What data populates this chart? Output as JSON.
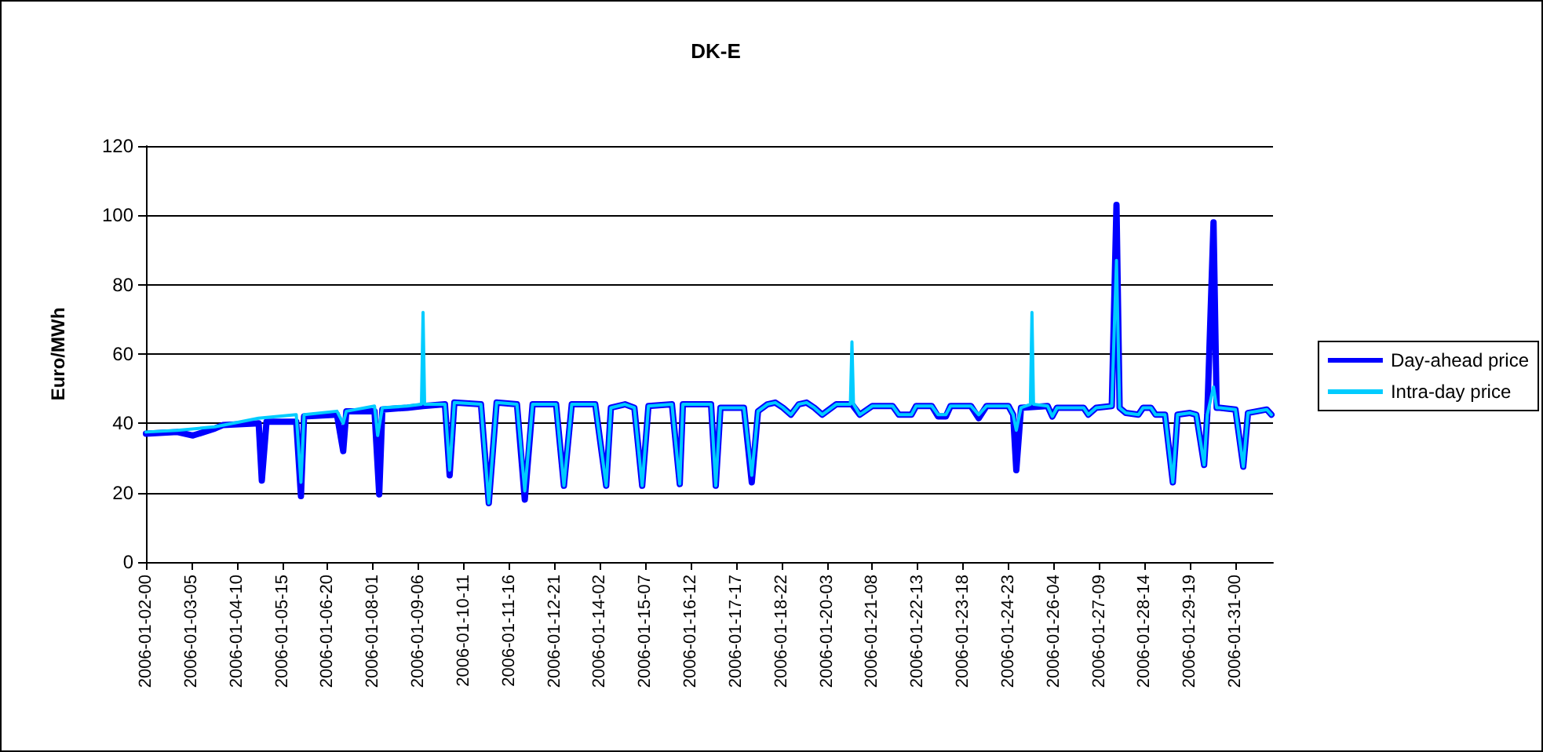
{
  "chart_data": {
    "type": "line",
    "title": "DK-E",
    "ylabel": "Euro/MWh",
    "xlim": [
      "2006-01-02T00:00",
      "2006-02-01T00:00"
    ],
    "xticks": [
      {
        "value": "2006-01-02T00:00",
        "label": "2006-01-02-00"
      },
      {
        "value": "2006-01-03T05:00",
        "label": "2006-01-03-05"
      },
      {
        "value": "2006-01-04T10:00",
        "label": "2006-01-04-10"
      },
      {
        "value": "2006-01-05T15:00",
        "label": "2006-01-05-15"
      },
      {
        "value": "2006-01-06T20:00",
        "label": "2006-01-06-20"
      },
      {
        "value": "2006-01-08T01:00",
        "label": "2006-01-08-01"
      },
      {
        "value": "2006-01-09T06:00",
        "label": "2006-01-09-06"
      },
      {
        "value": "2006-01-10T11:00",
        "label": "2006-01-10-11"
      },
      {
        "value": "2006-01-11T16:00",
        "label": "2006-01-11-16"
      },
      {
        "value": "2006-01-12T21:00",
        "label": "2006-01-12-21"
      },
      {
        "value": "2006-01-14T02:00",
        "label": "2006-01-14-02"
      },
      {
        "value": "2006-01-15T07:00",
        "label": "2006-01-15-07"
      },
      {
        "value": "2006-01-16T12:00",
        "label": "2006-01-16-12"
      },
      {
        "value": "2006-01-17T17:00",
        "label": "2006-01-17-17"
      },
      {
        "value": "2006-01-18T22:00",
        "label": "2006-01-18-22"
      },
      {
        "value": "2006-01-20T03:00",
        "label": "2006-01-20-03"
      },
      {
        "value": "2006-01-21T08:00",
        "label": "2006-01-21-08"
      },
      {
        "value": "2006-01-22T13:00",
        "label": "2006-01-22-13"
      },
      {
        "value": "2006-01-23T18:00",
        "label": "2006-01-23-18"
      },
      {
        "value": "2006-01-24T23:00",
        "label": "2006-01-24-23"
      },
      {
        "value": "2006-01-26T04:00",
        "label": "2006-01-26-04"
      },
      {
        "value": "2006-01-27T09:00",
        "label": "2006-01-27-09"
      },
      {
        "value": "2006-01-28T14:00",
        "label": "2006-01-28-14"
      },
      {
        "value": "2006-01-29T19:00",
        "label": "2006-01-29-19"
      },
      {
        "value": "2006-01-31T00:00",
        "label": "2006-01-31-00"
      }
    ],
    "ylim": [
      0,
      120
    ],
    "yticks": [
      0,
      20,
      40,
      60,
      80,
      100,
      120
    ],
    "grid": "y",
    "legend": "right",
    "marker": "none",
    "line_style": "solid",
    "series": [
      {
        "name": "Day-ahead price",
        "color": "#0000ff",
        "x": [
          "2006-01-02T00:00",
          "2006-01-02T20:00",
          "2006-01-03T06:00",
          "2006-01-03T20:00",
          "2006-01-04T01:00",
          "2006-01-05T00:00",
          "2006-01-05T02:00",
          "2006-01-05T05:00",
          "2006-01-06T00:00",
          "2006-01-06T03:00",
          "2006-01-06T05:00",
          "2006-01-07T02:00",
          "2006-01-07T06:00",
          "2006-01-07T08:00",
          "2006-01-08T02:00",
          "2006-01-08T05:00",
          "2006-01-08T07:00",
          "2006-01-08T23:00",
          "2006-01-09T09:00",
          "2006-01-09T23:00",
          "2006-01-10T02:00",
          "2006-01-10T05:00",
          "2006-01-10T22:00",
          "2006-01-11T03:00",
          "2006-01-11T08:00",
          "2006-01-11T21:00",
          "2006-01-12T02:00",
          "2006-01-12T07:00",
          "2006-01-12T22:00",
          "2006-01-13T03:00",
          "2006-01-13T08:00",
          "2006-01-13T23:00",
          "2006-01-14T06:00",
          "2006-01-14T09:00",
          "2006-01-14T18:00",
          "2006-01-15T00:00",
          "2006-01-15T05:00",
          "2006-01-15T09:00",
          "2006-01-16T00:00",
          "2006-01-16T05:00",
          "2006-01-16T07:00",
          "2006-01-17T01:00",
          "2006-01-17T04:00",
          "2006-01-17T07:00",
          "2006-01-17T22:00",
          "2006-01-18T03:00",
          "2006-01-18T07:00",
          "2006-01-18T13:00",
          "2006-01-18T18:00",
          "2006-01-18T23:00",
          "2006-01-19T04:00",
          "2006-01-19T09:00",
          "2006-01-19T14:00",
          "2006-01-19T19:00",
          "2006-01-20T00:00",
          "2006-01-20T09:00",
          "2006-01-20T19:00",
          "2006-01-21T00:00",
          "2006-01-21T08:00",
          "2006-01-21T21:00",
          "2006-01-22T01:00",
          "2006-01-22T09:00",
          "2006-01-22T12:00",
          "2006-01-22T22:00",
          "2006-01-23T02:00",
          "2006-01-23T07:00",
          "2006-01-23T10:00",
          "2006-01-23T23:00",
          "2006-01-24T04:00",
          "2006-01-24T09:00",
          "2006-01-24T23:00",
          "2006-01-25T02:00",
          "2006-01-25T04:00",
          "2006-01-25T07:00",
          "2006-01-26T00:00",
          "2006-01-26T03:00",
          "2006-01-26T06:00",
          "2006-01-26T23:00",
          "2006-01-27T02:00",
          "2006-01-27T07:00",
          "2006-01-27T17:00",
          "2006-01-27T20:00",
          "2006-01-27T22:00",
          "2006-01-28T02:00",
          "2006-01-28T10:00",
          "2006-01-28T13:00",
          "2006-01-28T18:00",
          "2006-01-28T21:00",
          "2006-01-29T03:00",
          "2006-01-29T08:00",
          "2006-01-29T11:00",
          "2006-01-29T19:00",
          "2006-01-29T23:00",
          "2006-01-30T04:00",
          "2006-01-30T06:00",
          "2006-01-30T10:00",
          "2006-01-30T12:00",
          "2006-01-30T14:00",
          "2006-01-31T00:00",
          "2006-01-31T05:00",
          "2006-01-31T08:00",
          "2006-01-31T20:00",
          "2006-01-31T23:00"
        ],
        "values": [
          37,
          37.5,
          36.5,
          38.5,
          39.5,
          40,
          23.5,
          40.5,
          40.5,
          19,
          42,
          42.5,
          32,
          43.5,
          43.5,
          19.5,
          44,
          44.5,
          45,
          45.5,
          25,
          46,
          45.5,
          17,
          46,
          45.5,
          18,
          45.5,
          45.5,
          22,
          45.5,
          45.5,
          22,
          44.5,
          45.5,
          44.5,
          22,
          45,
          45.5,
          22.5,
          45.5,
          45.5,
          22,
          44.5,
          44.5,
          23,
          43.5,
          45.5,
          46,
          44.5,
          42.5,
          45.5,
          46,
          44.5,
          42.5,
          45.5,
          45.5,
          42.5,
          45,
          45,
          42.5,
          42.5,
          45,
          45,
          42,
          42,
          45,
          45,
          41.5,
          45,
          45,
          42.5,
          26.5,
          44.5,
          45,
          42,
          44.5,
          44.5,
          42.5,
          44.5,
          45,
          103,
          44.5,
          43,
          42.5,
          44.5,
          44.5,
          42.5,
          42.5,
          23,
          42.5,
          43,
          42.5,
          28,
          42.5,
          98,
          44.5,
          44.5,
          44,
          27.5,
          43,
          44,
          42.5
        ]
      },
      {
        "name": "Intra-day price",
        "color": "#00ccff",
        "x": [
          "2006-01-02T00:00",
          "2006-01-02T20:00",
          "2006-01-03T20:00",
          "2006-01-05T00:00",
          "2006-01-06T00:00",
          "2006-01-06T03:00",
          "2006-01-06T05:00",
          "2006-01-07T02:00",
          "2006-01-07T06:00",
          "2006-01-07T08:00",
          "2006-01-08T02:00",
          "2006-01-08T04:00",
          "2006-01-08T07:00",
          "2006-01-08T23:00",
          "2006-01-09T08:00",
          "2006-01-09T09:00",
          "2006-01-09T10:00",
          "2006-01-09T23:00",
          "2006-01-10T02:00",
          "2006-01-10T05:00",
          "2006-01-10T22:00",
          "2006-01-11T03:00",
          "2006-01-11T08:00",
          "2006-01-11T21:00",
          "2006-01-12T02:00",
          "2006-01-12T07:00",
          "2006-01-12T22:00",
          "2006-01-13T03:00",
          "2006-01-13T08:00",
          "2006-01-13T23:00",
          "2006-01-14T06:00",
          "2006-01-14T09:00",
          "2006-01-14T18:00",
          "2006-01-15T00:00",
          "2006-01-15T05:00",
          "2006-01-15T09:00",
          "2006-01-16T00:00",
          "2006-01-16T05:00",
          "2006-01-16T07:00",
          "2006-01-17T01:00",
          "2006-01-17T04:00",
          "2006-01-17T07:00",
          "2006-01-17T22:00",
          "2006-01-18T03:00",
          "2006-01-18T07:00",
          "2006-01-18T13:00",
          "2006-01-18T18:00",
          "2006-01-18T23:00",
          "2006-01-19T04:00",
          "2006-01-19T09:00",
          "2006-01-19T14:00",
          "2006-01-19T19:00",
          "2006-01-20T00:00",
          "2006-01-20T09:00",
          "2006-01-20T18:00",
          "2006-01-20T19:00",
          "2006-01-20T20:00",
          "2006-01-21T00:00",
          "2006-01-21T08:00",
          "2006-01-21T21:00",
          "2006-01-22T01:00",
          "2006-01-22T09:00",
          "2006-01-22T12:00",
          "2006-01-22T22:00",
          "2006-01-23T02:00",
          "2006-01-23T07:00",
          "2006-01-23T10:00",
          "2006-01-23T23:00",
          "2006-01-24T04:00",
          "2006-01-24T09:00",
          "2006-01-24T23:00",
          "2006-01-25T02:00",
          "2006-01-25T04:00",
          "2006-01-25T07:00",
          "2006-01-25T13:00",
          "2006-01-25T14:00",
          "2006-01-25T15:00",
          "2006-01-26T00:00",
          "2006-01-26T03:00",
          "2006-01-26T06:00",
          "2006-01-26T23:00",
          "2006-01-27T02:00",
          "2006-01-27T07:00",
          "2006-01-27T17:00",
          "2006-01-27T20:00",
          "2006-01-27T22:00",
          "2006-01-28T02:00",
          "2006-01-28T10:00",
          "2006-01-28T13:00",
          "2006-01-28T18:00",
          "2006-01-28T21:00",
          "2006-01-29T03:00",
          "2006-01-29T08:00",
          "2006-01-29T11:00",
          "2006-01-29T19:00",
          "2006-01-29T23:00",
          "2006-01-30T04:00",
          "2006-01-30T06:00",
          "2006-01-30T10:00",
          "2006-01-30T12:00",
          "2006-01-30T14:00",
          "2006-01-31T00:00",
          "2006-01-31T05:00",
          "2006-01-31T08:00",
          "2006-01-31T20:00",
          "2006-01-31T23:00"
        ],
        "values": [
          37.5,
          38,
          39,
          41.5,
          42.5,
          23,
          42.5,
          43.5,
          40,
          43.5,
          45,
          36.5,
          44.5,
          45,
          45.5,
          72,
          45.5,
          45.5,
          26.5,
          46,
          45.5,
          17,
          46,
          45.5,
          20.5,
          45.5,
          45.5,
          22,
          45.5,
          45.5,
          22,
          44.5,
          45.5,
          44.5,
          22,
          45,
          45.5,
          22.5,
          45.5,
          45.5,
          22,
          44.5,
          44.5,
          25,
          43.5,
          45.5,
          46,
          44.5,
          42.5,
          45.5,
          46,
          44.5,
          42.5,
          45.5,
          45.5,
          63.5,
          45.5,
          42.5,
          45,
          45,
          42.5,
          42.5,
          45,
          45,
          42.5,
          42.5,
          45,
          45,
          42.5,
          45,
          45,
          42.5,
          38,
          44.5,
          45.5,
          72,
          45.5,
          45,
          42,
          44.5,
          44.5,
          42.5,
          44.5,
          45,
          87,
          44.5,
          43,
          42.5,
          44.5,
          44.5,
          42.5,
          42.5,
          23,
          42.5,
          43,
          42.5,
          28,
          42.5,
          50.5,
          44.5,
          44.5,
          44,
          27.5,
          43,
          44,
          42.5
        ]
      }
    ]
  }
}
